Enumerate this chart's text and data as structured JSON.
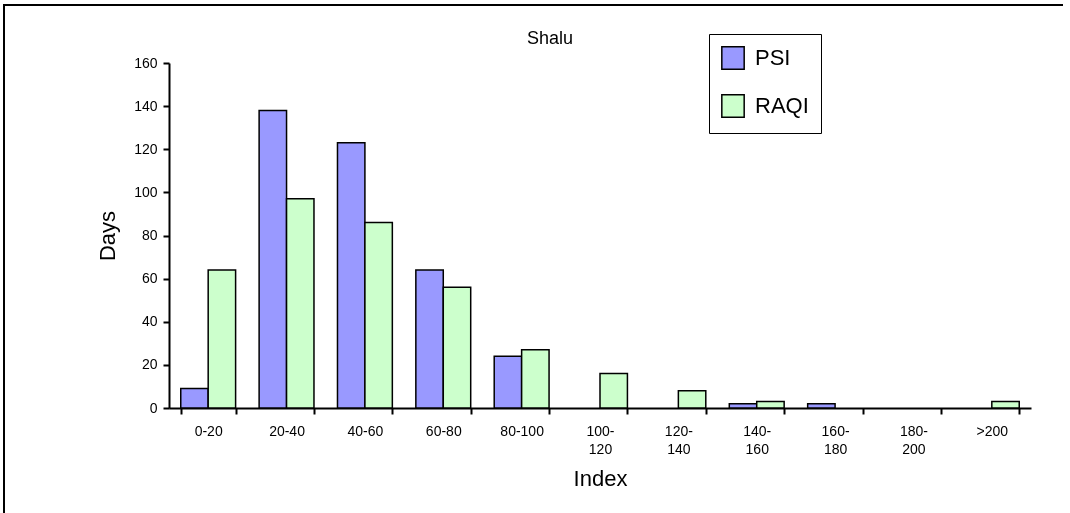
{
  "chart_data": {
    "type": "bar",
    "title": "Shalu",
    "xlabel": "Index",
    "ylabel": "Days",
    "categories": [
      "0-20",
      "20-40",
      "40-60",
      "60-80",
      "80-100",
      "100-120",
      "120-140",
      "140-160",
      "160-180",
      "180-200",
      ">200"
    ],
    "series": [
      {
        "name": "PSI",
        "color": "#9999ff",
        "values": [
          9,
          138,
          123,
          64,
          24,
          0,
          0,
          2,
          2,
          0,
          0
        ]
      },
      {
        "name": "RAQI",
        "color": "#ccffcc",
        "values": [
          64,
          97,
          86,
          56,
          27,
          16,
          8,
          3,
          0,
          0,
          3
        ]
      }
    ],
    "ylim": [
      0,
      160
    ],
    "yticks": [
      0,
      20,
      40,
      60,
      80,
      100,
      120,
      140,
      160
    ],
    "legend": "top right"
  }
}
